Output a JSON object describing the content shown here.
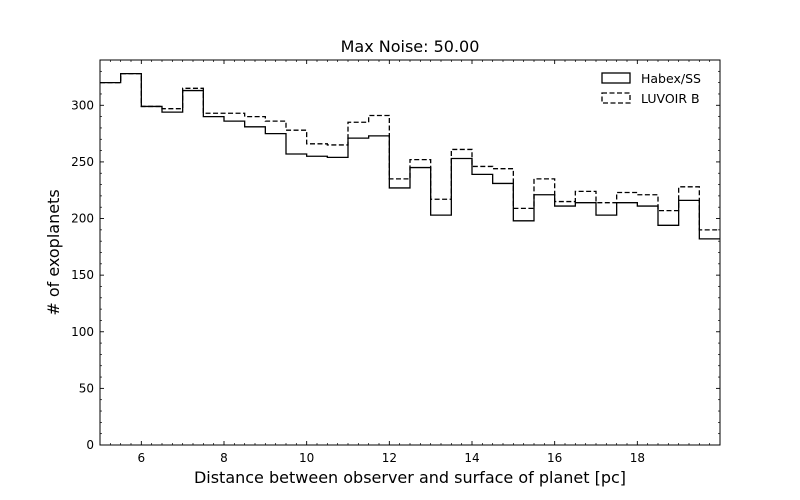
{
  "chart_data": {
    "type": "histogram-step",
    "title": "Max Noise: 50.00",
    "xlabel": "Distance between observer and surface of planet [pc]",
    "ylabel": "# of exoplanets",
    "xlim": [
      5,
      20
    ],
    "ylim": [
      0,
      340
    ],
    "xticks": [
      6,
      8,
      10,
      12,
      14,
      16,
      18
    ],
    "yticks": [
      0,
      50,
      100,
      150,
      200,
      250,
      300
    ],
    "grid": false,
    "legend_position": "top-right",
    "bin_edges": [
      5,
      5.5,
      6,
      6.5,
      7,
      7.5,
      8,
      8.5,
      9,
      9.5,
      10,
      10.5,
      11,
      11.5,
      12,
      12.5,
      13,
      13.5,
      14,
      14.5,
      15,
      15.5,
      16,
      16.5,
      17,
      17.5,
      18,
      18.5,
      19,
      19.5,
      20
    ],
    "series": [
      {
        "name": "Habex/SS",
        "linestyle": "solid",
        "color": "#000000",
        "values": [
          320,
          328,
          299,
          294,
          313,
          290,
          286,
          281,
          275,
          257,
          255,
          254,
          271,
          273,
          227,
          245,
          203,
          253,
          239,
          231,
          198,
          221,
          211,
          214,
          203,
          214,
          211,
          194,
          216,
          182
        ]
      },
      {
        "name": "LUVOIR B",
        "linestyle": "dashed",
        "color": "#000000",
        "values": [
          320,
          328,
          299,
          297,
          315,
          293,
          293,
          290,
          286,
          278,
          266,
          265,
          285,
          291,
          235,
          252,
          217,
          261,
          246,
          244,
          209,
          235,
          215,
          224,
          214,
          223,
          221,
          207,
          228,
          190
        ]
      }
    ]
  }
}
